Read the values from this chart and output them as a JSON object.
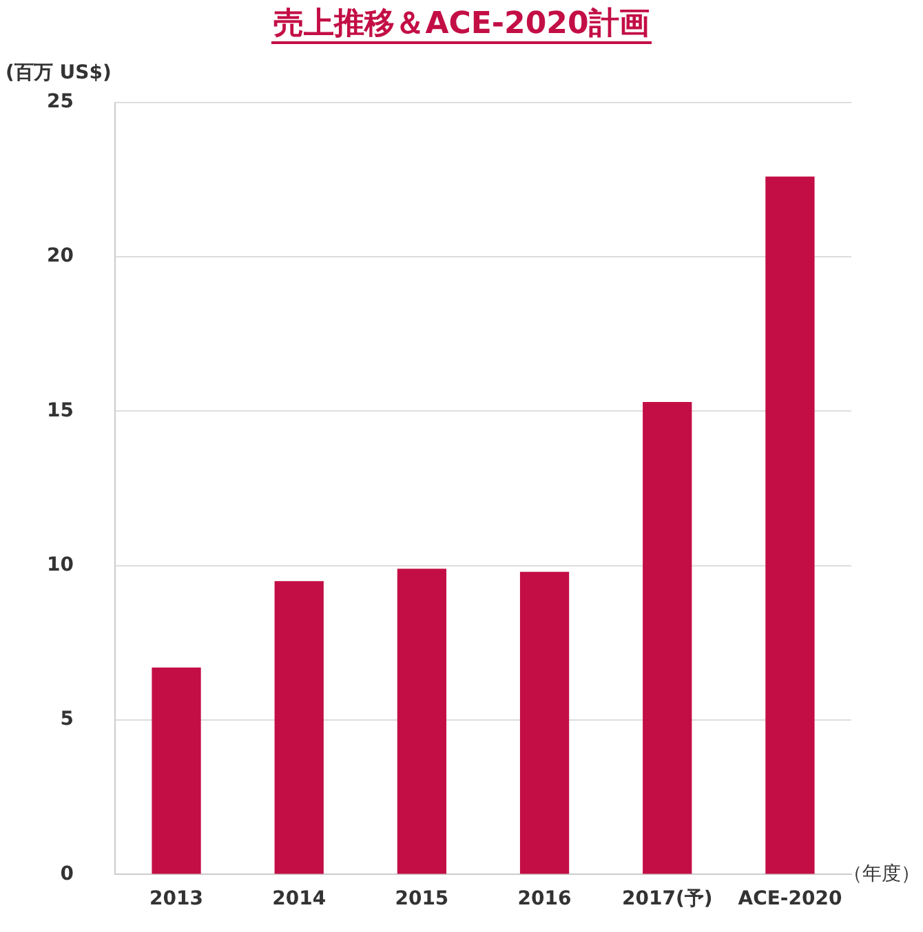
{
  "chart_data": {
    "type": "bar",
    "title": "売上推移＆ACE-2020計画",
    "ylabel": "(百万 US$)",
    "xlabel": "（年度）",
    "categories": [
      "2013",
      "2014",
      "2015",
      "2016",
      "2017(予)",
      "ACE-2020"
    ],
    "values": [
      6.7,
      9.5,
      9.9,
      9.8,
      15.3,
      22.6
    ],
    "color": "#c30e45",
    "ylim": [
      0,
      25
    ],
    "yticks": [
      0,
      5,
      10,
      15,
      20,
      25
    ],
    "grid": "y",
    "legend": false
  }
}
